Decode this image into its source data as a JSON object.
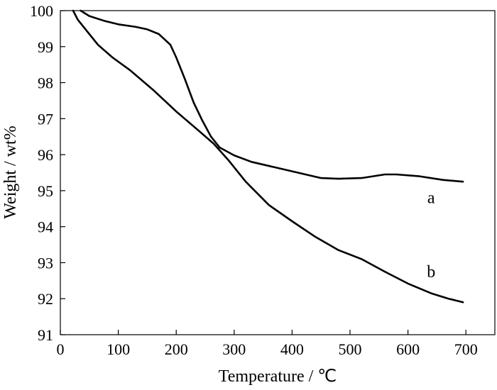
{
  "chart_data": {
    "type": "line",
    "title": "",
    "xlabel": "Temperature / ℃",
    "ylabel": "Weight / wt%",
    "xlim": [
      0,
      750
    ],
    "ylim": [
      91,
      100
    ],
    "xticks": [
      0,
      100,
      200,
      300,
      400,
      500,
      600,
      700
    ],
    "yticks": [
      91,
      92,
      93,
      94,
      95,
      96,
      97,
      98,
      99,
      100
    ],
    "grid": false,
    "legend": "none",
    "series": [
      {
        "name": "a",
        "label_pos": [
          640,
          94.65
        ],
        "points": [
          [
            35,
            100
          ],
          [
            50,
            99.85
          ],
          [
            75,
            99.72
          ],
          [
            100,
            99.62
          ],
          [
            130,
            99.55
          ],
          [
            150,
            99.48
          ],
          [
            170,
            99.35
          ],
          [
            190,
            99.05
          ],
          [
            200,
            98.7
          ],
          [
            215,
            98.1
          ],
          [
            230,
            97.45
          ],
          [
            245,
            96.95
          ],
          [
            260,
            96.5
          ],
          [
            275,
            96.2
          ],
          [
            300,
            95.98
          ],
          [
            330,
            95.8
          ],
          [
            370,
            95.65
          ],
          [
            410,
            95.5
          ],
          [
            450,
            95.35
          ],
          [
            480,
            95.33
          ],
          [
            520,
            95.35
          ],
          [
            560,
            95.45
          ],
          [
            580,
            95.45
          ],
          [
            620,
            95.4
          ],
          [
            660,
            95.3
          ],
          [
            695,
            95.25
          ]
        ]
      },
      {
        "name": "b",
        "label_pos": [
          640,
          92.6
        ],
        "points": [
          [
            22,
            100
          ],
          [
            30,
            99.75
          ],
          [
            45,
            99.45
          ],
          [
            65,
            99.05
          ],
          [
            90,
            98.7
          ],
          [
            120,
            98.35
          ],
          [
            160,
            97.8
          ],
          [
            200,
            97.2
          ],
          [
            240,
            96.65
          ],
          [
            265,
            96.3
          ],
          [
            290,
            95.85
          ],
          [
            320,
            95.25
          ],
          [
            360,
            94.6
          ],
          [
            400,
            94.15
          ],
          [
            440,
            93.72
          ],
          [
            480,
            93.35
          ],
          [
            520,
            93.1
          ],
          [
            560,
            92.75
          ],
          [
            600,
            92.42
          ],
          [
            640,
            92.15
          ],
          [
            670,
            92.0
          ],
          [
            695,
            91.9
          ]
        ]
      }
    ],
    "line_color": "#000000"
  }
}
